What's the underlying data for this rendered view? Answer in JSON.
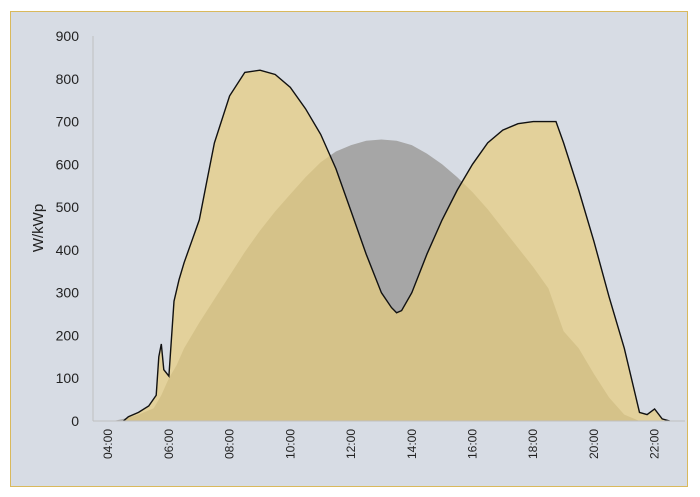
{
  "chart_data": {
    "type": "area",
    "ylabel": "W/kWp",
    "xlabel": "",
    "ylim": [
      0,
      900
    ],
    "xlim": [
      "03:30",
      "23:00"
    ],
    "yticks": [
      "0",
      "100",
      "200",
      "300",
      "400",
      "500",
      "600",
      "700",
      "800",
      "900"
    ],
    "xticks": [
      "04:00",
      "06:00",
      "08:00",
      "10:00",
      "12:00",
      "14:00",
      "16:00",
      "18:00",
      "20:00",
      "22:00"
    ],
    "grid": false,
    "legend": "none",
    "colors": {
      "background": "#d7dce4",
      "border": "#d9b95c",
      "series_south": "#a6a6a6",
      "series_east_west": "#e8cd7e",
      "series_east_west_line": "#111111"
    },
    "series": [
      {
        "x": [
          "04:10",
          "04:30",
          "05:00",
          "05:30",
          "05:45",
          "06:00",
          "06:15",
          "06:30",
          "07:00",
          "07:30",
          "08:00",
          "08:30",
          "09:00",
          "09:30",
          "10:00",
          "10:30",
          "11:00",
          "11:30",
          "12:00",
          "12:30",
          "13:00",
          "13:30",
          "14:00",
          "14:30",
          "15:00",
          "15:30",
          "16:00",
          "16:30",
          "17:00",
          "17:30",
          "18:00",
          "18:30",
          "19:00",
          "19:30",
          "20:00",
          "20:30",
          "21:00",
          "21:30",
          "22:00",
          "22:30"
        ],
        "values": [
          0,
          5,
          15,
          30,
          60,
          100,
          130,
          170,
          230,
          285,
          340,
          395,
          445,
          490,
          530,
          570,
          605,
          630,
          645,
          655,
          658,
          655,
          645,
          625,
          600,
          570,
          535,
          495,
          450,
          405,
          360,
          310,
          210,
          170,
          110,
          55,
          15,
          0,
          0,
          0
        ]
      },
      {
        "x": [
          "04:30",
          "04:40",
          "05:00",
          "05:20",
          "05:35",
          "05:40",
          "05:45",
          "05:50",
          "06:00",
          "06:10",
          "06:20",
          "06:30",
          "06:45",
          "07:00",
          "07:15",
          "07:30",
          "08:00",
          "08:30",
          "09:00",
          "09:30",
          "10:00",
          "10:30",
          "11:00",
          "11:30",
          "12:00",
          "12:30",
          "13:00",
          "13:20",
          "13:30",
          "13:40",
          "14:00",
          "14:30",
          "15:00",
          "15:30",
          "16:00",
          "16:30",
          "17:00",
          "17:30",
          "18:00",
          "18:30",
          "18:45",
          "19:00",
          "19:30",
          "20:00",
          "20:30",
          "21:00",
          "21:30",
          "21:45",
          "22:00",
          "22:15",
          "22:30"
        ],
        "values": [
          0,
          10,
          20,
          35,
          60,
          150,
          180,
          120,
          105,
          280,
          330,
          370,
          420,
          470,
          560,
          650,
          760,
          815,
          820,
          810,
          780,
          730,
          670,
          590,
          490,
          390,
          300,
          265,
          253,
          258,
          300,
          390,
          470,
          540,
          600,
          650,
          680,
          695,
          700,
          700,
          700,
          650,
          540,
          420,
          290,
          170,
          20,
          15,
          28,
          5,
          0
        ]
      }
    ]
  }
}
